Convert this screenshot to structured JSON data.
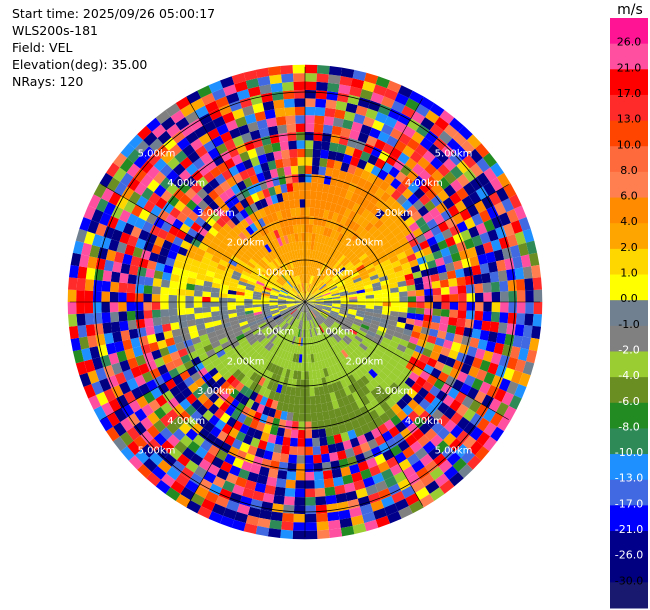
{
  "info": {
    "start_time": "Start time: 2025/09/26 05:00:17",
    "instrument": "WLS200s-181",
    "field": "Field: VEL",
    "elevation": "Elevation(deg): 35.00",
    "nrays": "NRays: 120"
  },
  "colorbar": {
    "unit": "m/s",
    "ticks": [
      "26.0",
      "21.0",
      "17.0",
      "13.0",
      "10.0",
      "8.0",
      "6.0",
      "4.0",
      "2.0",
      "1.0",
      "0.0",
      "-1.0",
      "-2.0",
      "-4.0",
      "-6.0",
      "-8.0",
      "-10.0",
      "-13.0",
      "-17.0",
      "-21.0",
      "-26.0",
      "-30.0"
    ],
    "colors": [
      "#ff1493",
      "#ff4fa0",
      "#ff0000",
      "#ff2a2a",
      "#ff4500",
      "#ff6a3d",
      "#ff7f50",
      "#ff8c00",
      "#ffa500",
      "#ffd700",
      "#ffff00",
      "#708090",
      "#808080",
      "#9acd32",
      "#6b8e23",
      "#228b22",
      "#2e8b57",
      "#1e90ff",
      "#4169e1",
      "#0000ff",
      "#00008b",
      "#000080",
      "#191970"
    ]
  },
  "chart_data": {
    "type": "heatmap",
    "title": "",
    "xlabel": "",
    "ylabel": "",
    "projection": "polar PPI",
    "nrays": 120,
    "elevation_deg": 35.0,
    "range_rings_km": [
      1.0,
      2.0,
      3.0,
      4.0,
      5.0
    ],
    "ring_labels": [
      "1.00km",
      "2.00km",
      "3.00km",
      "4.00km",
      "5.00km"
    ],
    "max_range_km": 5.6,
    "value_range_ms": [
      -30.0,
      26.0
    ],
    "pattern": {
      "near_north": "approaching +2 to +6 m/s",
      "near_south": "receding -2 to -6 m/s",
      "east_west": "~0 m/s",
      "beyond_3km": "noise"
    }
  }
}
